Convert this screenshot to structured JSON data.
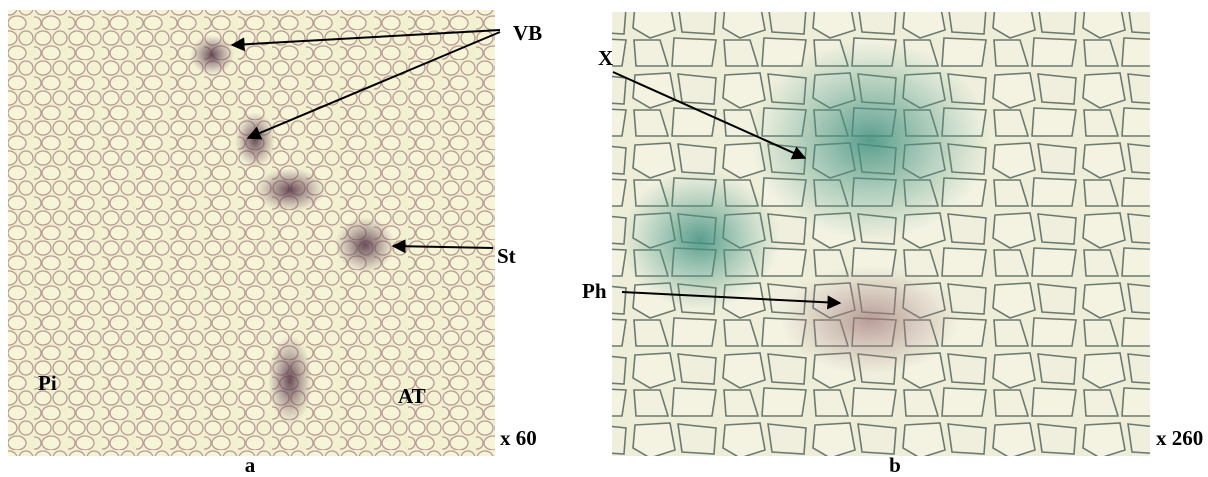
{
  "panels": [
    {
      "label": "a",
      "magnification": "x 60",
      "annotations": [
        "VB",
        "St",
        "Pi",
        "AT"
      ]
    },
    {
      "label": "b",
      "magnification": "x 260",
      "annotations": [
        "X",
        "Ph"
      ]
    }
  ]
}
